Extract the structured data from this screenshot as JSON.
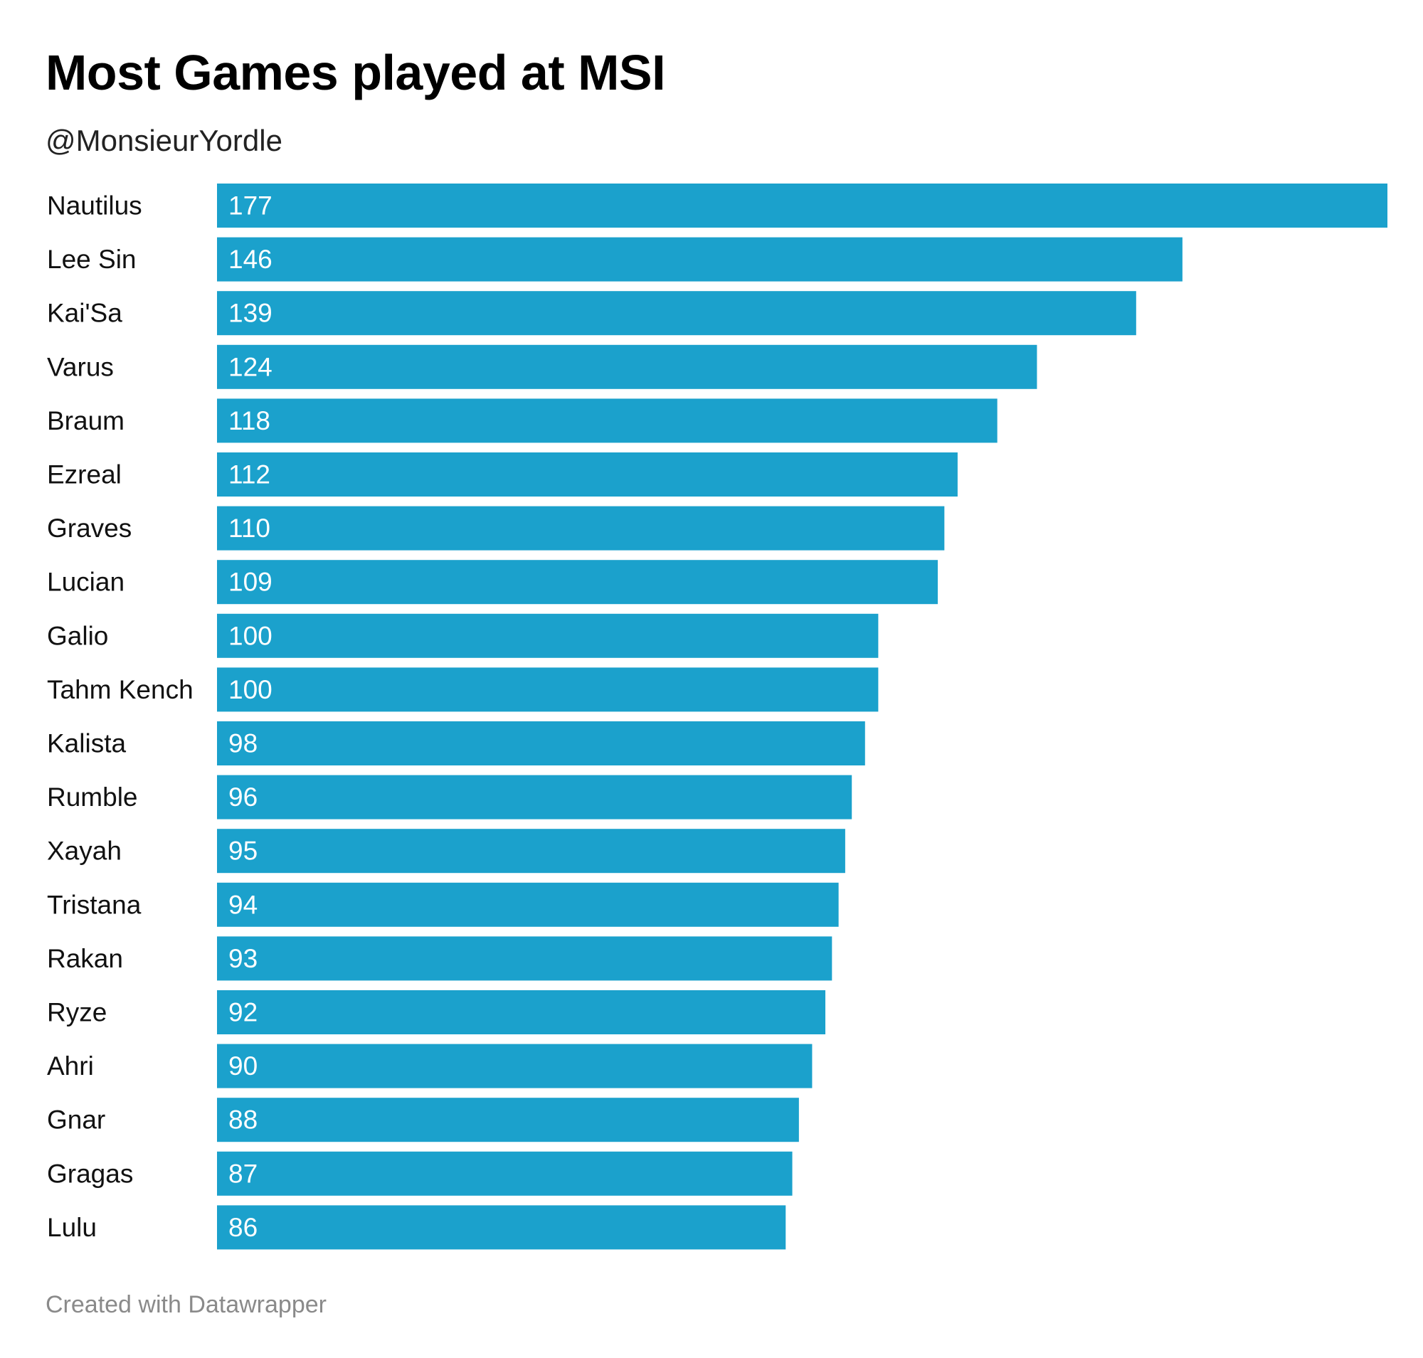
{
  "chart_data": {
    "type": "bar",
    "orientation": "horizontal",
    "title": "Most Games played at MSI",
    "subtitle": "@MonsieurYordle",
    "categories": [
      "Nautilus",
      "Lee Sin",
      "Kai'Sa",
      "Varus",
      "Braum",
      "Ezreal",
      "Graves",
      "Lucian",
      "Galio",
      "Tahm Kench",
      "Kalista",
      "Rumble",
      "Xayah",
      "Tristana",
      "Rakan",
      "Ryze",
      "Ahri",
      "Gnar",
      "Gragas",
      "Lulu"
    ],
    "values": [
      177,
      146,
      139,
      124,
      118,
      112,
      110,
      109,
      100,
      100,
      98,
      96,
      95,
      94,
      93,
      92,
      90,
      88,
      87,
      86
    ],
    "xlim": [
      0,
      177
    ],
    "grid": false,
    "legend": "none",
    "bar_color": "#1ba1cc"
  },
  "footer": {
    "credit": "Created with Datawrapper"
  }
}
